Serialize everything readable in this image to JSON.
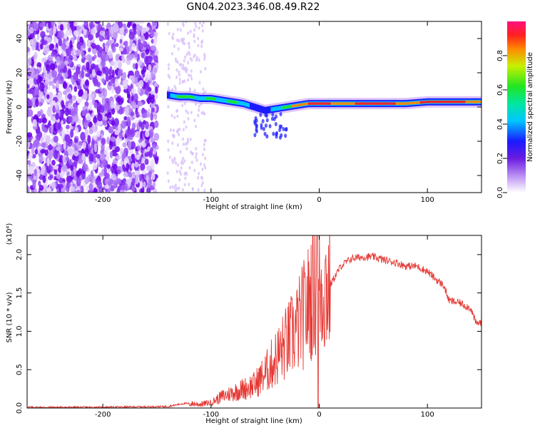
{
  "title": "GN04.2023.346.08.49.R22",
  "chart_data": [
    {
      "type": "heatmap",
      "xlabel": "Height of straight line (km)",
      "ylabel": "Frequency (Hz)",
      "xlim": [
        -270,
        150
      ],
      "ylim": [
        -50,
        50
      ],
      "xticks": [
        "-200",
        "-100",
        "0",
        "100"
      ],
      "xtick_values": [
        -200,
        -100,
        0,
        100
      ],
      "yticks": [
        "40",
        "20",
        "0",
        "-20",
        "-40"
      ],
      "ytick_values": [
        40,
        20,
        0,
        -20,
        -40
      ],
      "colorbar": {
        "label": "Normalized spectral amplitude",
        "range": [
          0,
          1
        ],
        "ticks": [
          "0.0",
          "0.2",
          "0.4",
          "0.6",
          "0.8"
        ],
        "tick_values": [
          0.0,
          0.2,
          0.4,
          0.6,
          0.8
        ]
      },
      "ridge": {
        "x": [
          -140,
          -130,
          -120,
          -110,
          -100,
          -90,
          -80,
          -70,
          -60,
          -50,
          -40,
          -30,
          -20,
          -10,
          0,
          20,
          40,
          60,
          80,
          100,
          120,
          150
        ],
        "y": [
          7,
          6,
          6,
          5,
          5,
          4,
          3,
          2,
          0,
          -2,
          -1,
          0,
          1,
          2,
          2,
          2,
          2,
          2,
          2,
          3,
          3,
          3
        ],
        "amplitude": [
          0.5,
          0.7,
          0.7,
          0.6,
          0.7,
          0.6,
          0.7,
          0.6,
          0.5,
          0.5,
          0.6,
          0.7,
          0.8,
          0.9,
          1.0,
          0.8,
          0.95,
          1.0,
          0.8,
          0.95,
          1.0,
          0.8
        ]
      },
      "noise_region": {
        "x_range": [
          -270,
          -110
        ],
        "y_range": [
          -50,
          50
        ]
      }
    },
    {
      "type": "line",
      "xlabel": "Height of straight line (km)",
      "ylabel": "SNR (10 * v/v)",
      "y_multiplier": "(x10⁴)",
      "xlim": [
        -270,
        150
      ],
      "ylim": [
        0,
        2.25
      ],
      "xticks": [
        "-200",
        "-100",
        "0",
        "100"
      ],
      "xtick_values": [
        -200,
        -100,
        0,
        100
      ],
      "yticks": [
        "0.0",
        "0.5",
        "1.0",
        "1.5",
        "2.0"
      ],
      "ytick_values": [
        0,
        0.5,
        1.0,
        1.5,
        2.0
      ],
      "color": "#e53935",
      "series": [
        {
          "x": [
            -270,
            -200,
            -140,
            -125,
            -110,
            -100,
            -90,
            -80,
            -70,
            -60,
            -50,
            -40,
            -30,
            -20,
            -10,
            -5,
            0,
            10,
            20,
            30,
            40,
            50,
            60,
            70,
            80,
            90,
            100,
            110,
            115,
            120,
            130,
            140,
            145,
            150
          ],
          "y": [
            0.01,
            0.01,
            0.02,
            0.06,
            0.05,
            0.07,
            0.15,
            0.2,
            0.25,
            0.3,
            0.45,
            0.65,
            0.85,
            1.05,
            1.35,
            1.6,
            1.55,
            1.6,
            1.85,
            1.95,
            1.97,
            1.97,
            1.93,
            1.9,
            1.85,
            1.85,
            1.78,
            1.65,
            1.6,
            1.4,
            1.37,
            1.3,
            1.1,
            1.12
          ]
        }
      ]
    }
  ]
}
